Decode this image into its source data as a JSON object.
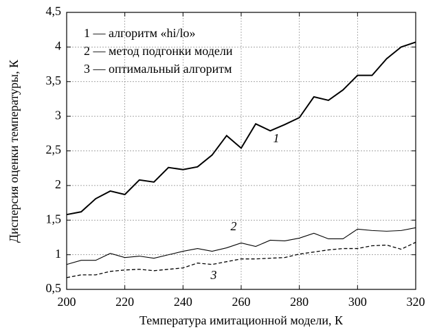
{
  "chart_data": {
    "type": "line",
    "xlabel": "Температура имитационной модели, К",
    "ylabel": "Дисперсия оценки температуры, К",
    "x": [
      200,
      205,
      210,
      215,
      220,
      225,
      230,
      235,
      240,
      245,
      250,
      255,
      260,
      265,
      270,
      275,
      280,
      285,
      290,
      295,
      300,
      305,
      310,
      315,
      320
    ],
    "series": [
      {
        "name": "1 — алгоритм «hi/lo»",
        "color": "#000000",
        "linestyle": "thick",
        "values": [
          1.58,
          1.62,
          1.81,
          1.92,
          1.87,
          2.08,
          2.05,
          2.26,
          2.23,
          2.27,
          2.44,
          2.72,
          2.54,
          2.89,
          2.79,
          2.88,
          2.98,
          3.28,
          3.23,
          3.38,
          3.59,
          3.59,
          3.83,
          4.0,
          4.07
        ]
      },
      {
        "name": "2 — метод подгонки модели",
        "color": "#000000",
        "linestyle": "thin",
        "values": [
          0.86,
          0.92,
          0.92,
          1.02,
          0.96,
          0.98,
          0.95,
          1.0,
          1.05,
          1.09,
          1.05,
          1.1,
          1.17,
          1.12,
          1.21,
          1.2,
          1.24,
          1.31,
          1.23,
          1.23,
          1.37,
          1.35,
          1.34,
          1.35,
          1.39
        ]
      },
      {
        "name": "3 — оптимальный алгоритм",
        "color": "#000000",
        "linestyle": "dashed",
        "values": [
          0.67,
          0.71,
          0.71,
          0.76,
          0.78,
          0.79,
          0.77,
          0.79,
          0.81,
          0.88,
          0.86,
          0.9,
          0.94,
          0.94,
          0.95,
          0.96,
          1.01,
          1.04,
          1.07,
          1.09,
          1.09,
          1.13,
          1.14,
          1.08,
          1.18
        ]
      }
    ],
    "curve_labels": [
      "1",
      "2",
      "3"
    ],
    "xlim": [
      200,
      320
    ],
    "xticks": [
      200,
      220,
      240,
      260,
      280,
      300,
      320
    ],
    "ylim": [
      0.5,
      4.5
    ],
    "yticks": [
      {
        "value": 0.5,
        "label": "0,5"
      },
      1,
      {
        "value": 1.5,
        "label": "1,5"
      },
      2,
      {
        "value": 2.5,
        "label": "2,5"
      },
      3,
      {
        "value": 3.5,
        "label": "3,5"
      },
      4,
      {
        "value": 4.5,
        "label": "4,5"
      }
    ],
    "grid": true
  }
}
